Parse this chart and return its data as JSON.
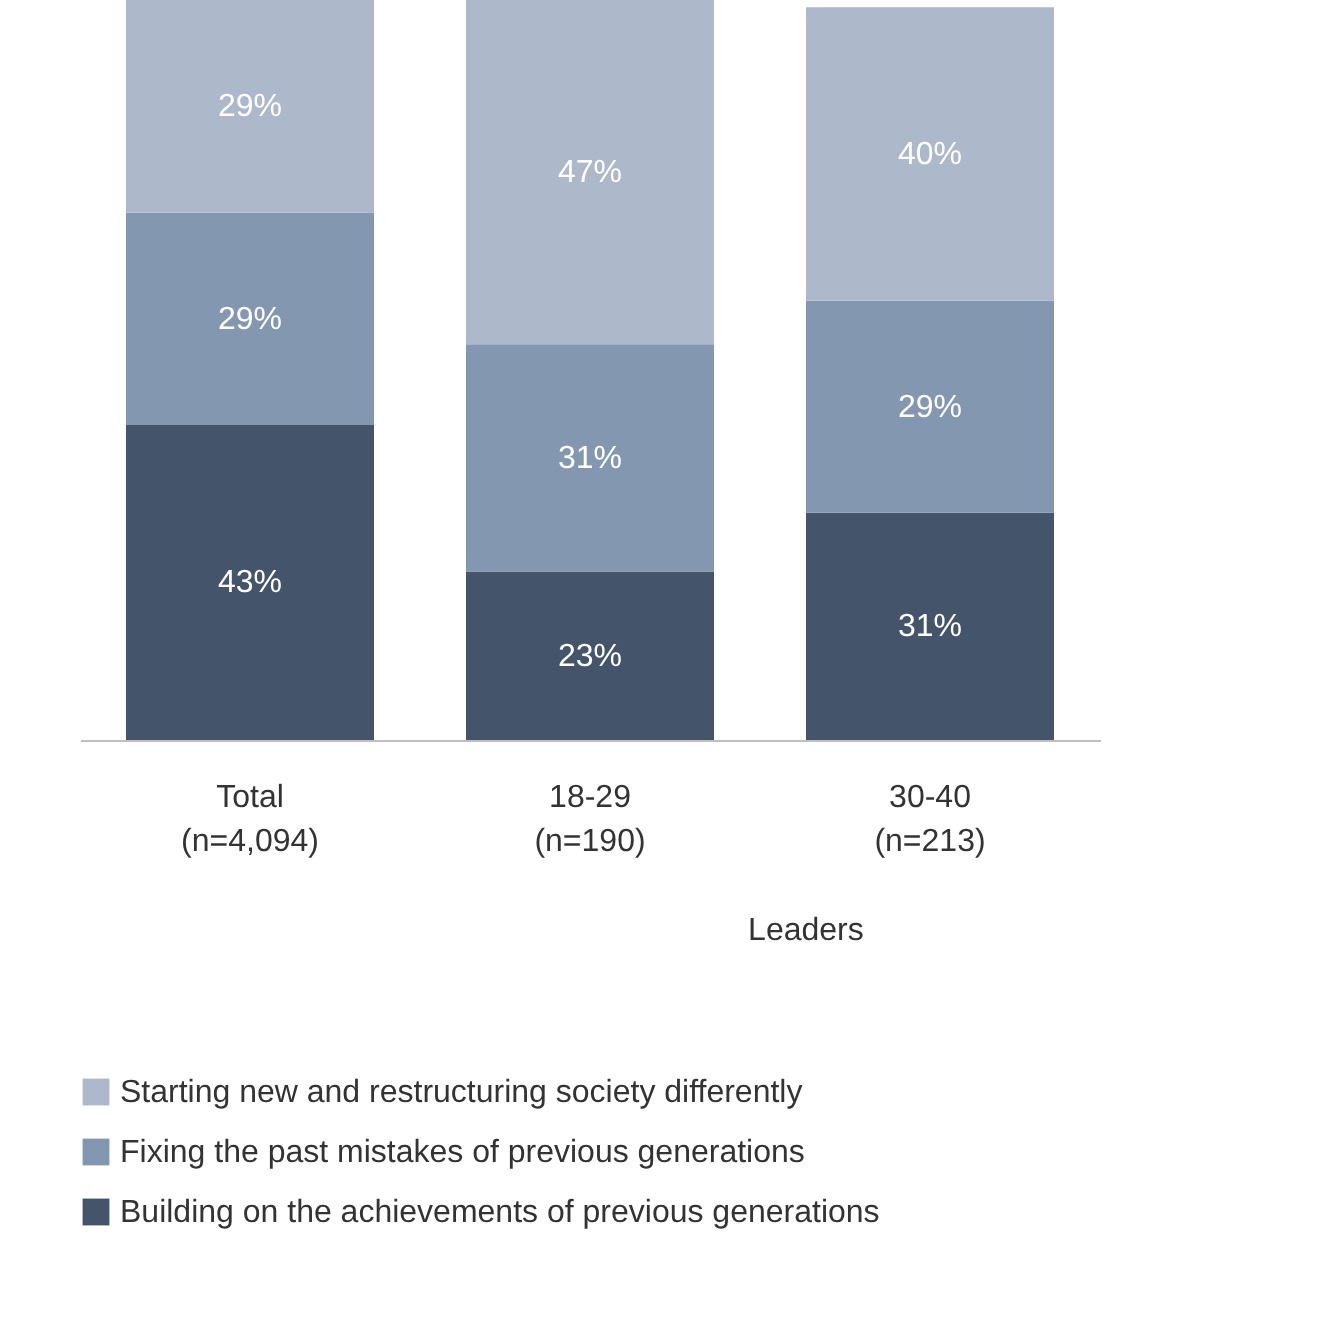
{
  "chart_data": {
    "type": "bar",
    "stacked": true,
    "legend": "bottom",
    "grid": false,
    "categories": [
      "Total\n(n=4,094)",
      "18-29\n(n=190)",
      "30-40\n(n=213)"
    ],
    "series": [
      {
        "name": "Building on the achievements of previous generations",
        "color": "#44546a",
        "values": [
          43,
          23,
          31
        ],
        "value_labels": [
          "43%",
          "23%",
          "31%"
        ]
      },
      {
        "name": "Fixing the past mistakes of previous generations",
        "color": "#8497b0",
        "values": [
          29,
          31,
          29
        ],
        "value_labels": [
          "29%",
          "31%",
          "29%"
        ]
      },
      {
        "name": "Starting new and restructuring society differently",
        "color": "#adb9ca",
        "values": [
          29,
          47,
          40
        ],
        "value_labels": [
          "29%",
          "47%",
          "40%"
        ]
      }
    ],
    "annotations": [
      "Leaders"
    ]
  }
}
